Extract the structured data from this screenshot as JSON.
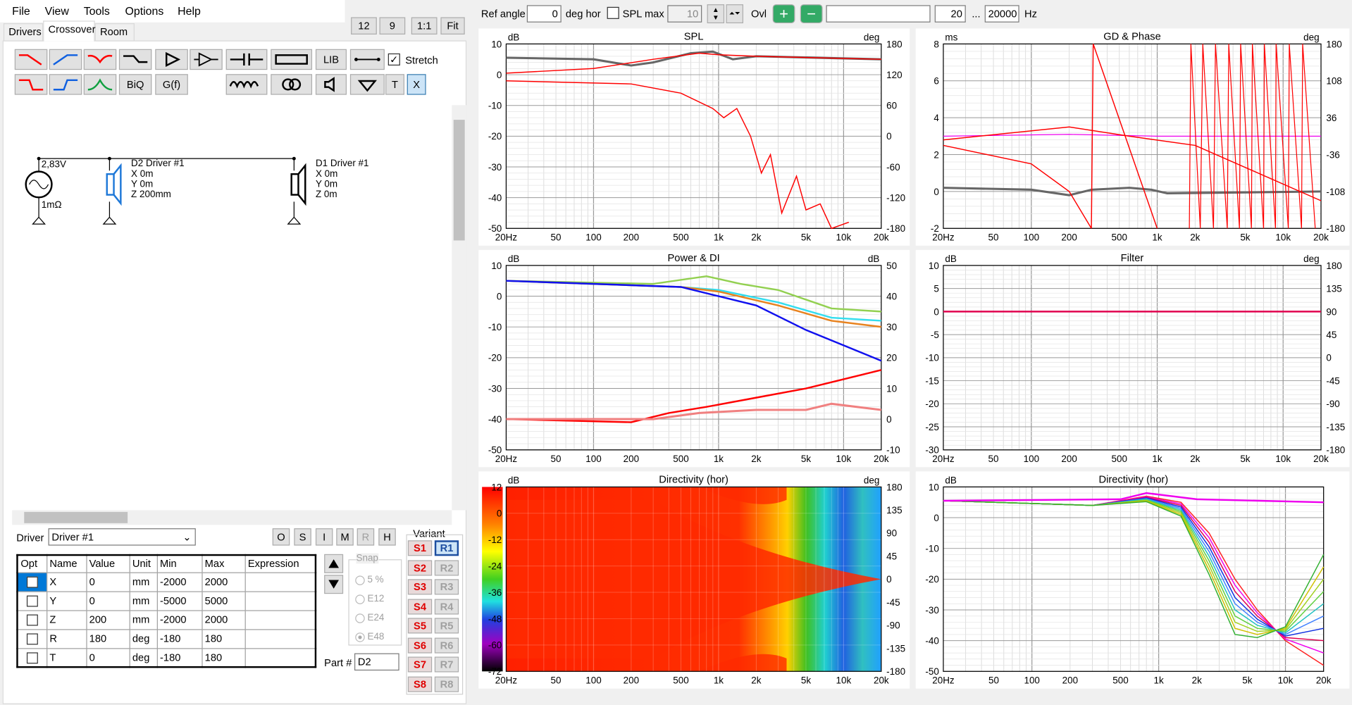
{
  "menu": [
    "File",
    "View",
    "Tools",
    "Options",
    "Help"
  ],
  "tabs": [
    "Drivers",
    "Crossover",
    "Room"
  ],
  "topright_buttons": [
    "12",
    "9",
    "1:1",
    "Fit"
  ],
  "toolbar": {
    "lib": "LIB",
    "biq": "BiQ",
    "gf": "G(f)",
    "t": "T",
    "x": "X",
    "stretch": "Stretch"
  },
  "schematic": {
    "source_voltage": "2,83V",
    "source_r": "1mΩ",
    "d2": [
      "D2 Driver #1",
      "X 0m",
      "Y 0m",
      "Z 200mm"
    ],
    "d1": [
      "D1 Driver #1",
      "X 0m",
      "Y 0m",
      "Z 0m"
    ]
  },
  "driver": {
    "label": "Driver",
    "selected": "Driver #1",
    "buttons": [
      "O",
      "S",
      "I",
      "M",
      "R",
      "H"
    ]
  },
  "params": {
    "headers": [
      "Opt",
      "Name",
      "Value",
      "Unit",
      "Min",
      "Max",
      "Expression"
    ],
    "rows": [
      [
        "X",
        "0",
        "mm",
        "-2000",
        "2000"
      ],
      [
        "Y",
        "0",
        "mm",
        "-5000",
        "5000"
      ],
      [
        "Z",
        "200",
        "mm",
        "-2000",
        "2000"
      ],
      [
        "R",
        "180",
        "deg",
        "-180",
        "180"
      ],
      [
        "T",
        "0",
        "deg",
        "-180",
        "180"
      ]
    ]
  },
  "snap": {
    "label": "Snap",
    "options": [
      "5 %",
      "E12",
      "E24",
      "E48"
    ],
    "selected": "E48"
  },
  "part": {
    "label": "Part #",
    "value": "D2"
  },
  "variant": {
    "label": "Variant",
    "s": [
      "S1",
      "S2",
      "S3",
      "S4",
      "S5",
      "S6",
      "S7",
      "S8"
    ],
    "r": [
      "R1",
      "R2",
      "R3",
      "R4",
      "R5",
      "R6",
      "R7",
      "R8"
    ]
  },
  "topbar": {
    "ref_angle_label": "Ref angle",
    "ref_angle": "0",
    "deg_hor": "deg hor",
    "spl_max_label": "SPL max",
    "spl_max": "10",
    "ovl": "Ovl",
    "f_min": "20",
    "dots": "...",
    "f_max": "20000",
    "hz": "Hz"
  },
  "freq_ticks": [
    "20Hz",
    "50",
    "100",
    "200",
    "500",
    "1k",
    "2k",
    "5k",
    "10k",
    "20k"
  ],
  "plots": [
    {
      "title": "SPL",
      "lunit": "dB",
      "runit": "deg",
      "left": [
        "10",
        "0",
        "-10",
        "-20",
        "-30",
        "-40",
        "-50"
      ],
      "right": [
        "180",
        "120",
        "60",
        "0",
        "-60",
        "-120",
        "-180"
      ]
    },
    {
      "title": "GD & Phase",
      "lunit": "ms",
      "runit": "deg",
      "left": [
        "8",
        "6",
        "4",
        "2",
        "0",
        "-2"
      ],
      "right": [
        "180",
        "108",
        "36",
        "-36",
        "-108",
        "-180"
      ]
    },
    {
      "title": "Power & DI",
      "lunit": "dB",
      "runit": "dB",
      "left": [
        "10",
        "0",
        "-10",
        "-20",
        "-30",
        "-40",
        "-50"
      ],
      "right": [
        "50",
        "40",
        "30",
        "20",
        "10",
        "0",
        "-10"
      ]
    },
    {
      "title": "Filter",
      "lunit": "dB",
      "runit": "deg",
      "left": [
        "10",
        "5",
        "0",
        "-5",
        "-10",
        "-15",
        "-20",
        "-25",
        "-30"
      ],
      "right": [
        "180",
        "135",
        "90",
        "45",
        "0",
        "-45",
        "-90",
        "-135",
        "-180"
      ]
    },
    {
      "title": "Directivity (hor)",
      "lunit": "dB",
      "runit": "deg",
      "left": [
        "12",
        "0",
        "-12",
        "-24",
        "-36",
        "-48",
        "-60",
        "-72"
      ],
      "right": [
        "180",
        "135",
        "90",
        "45",
        "0",
        "-45",
        "-90",
        "-135",
        "-180"
      ]
    },
    {
      "title": "Directivity (hor)",
      "lunit": "dB",
      "runit": "",
      "left": [
        "10",
        "0",
        "-10",
        "-20",
        "-30",
        "-40",
        "-50"
      ],
      "right": []
    }
  ],
  "colors": {
    "red": "#ff0000",
    "gray": "#666666",
    "green": "#92d050",
    "cyan": "#33ddee",
    "orange": "#e8821e",
    "blue": "#1010ee",
    "magenta": "#ee00ee",
    "crimson": "#e0004e"
  }
}
